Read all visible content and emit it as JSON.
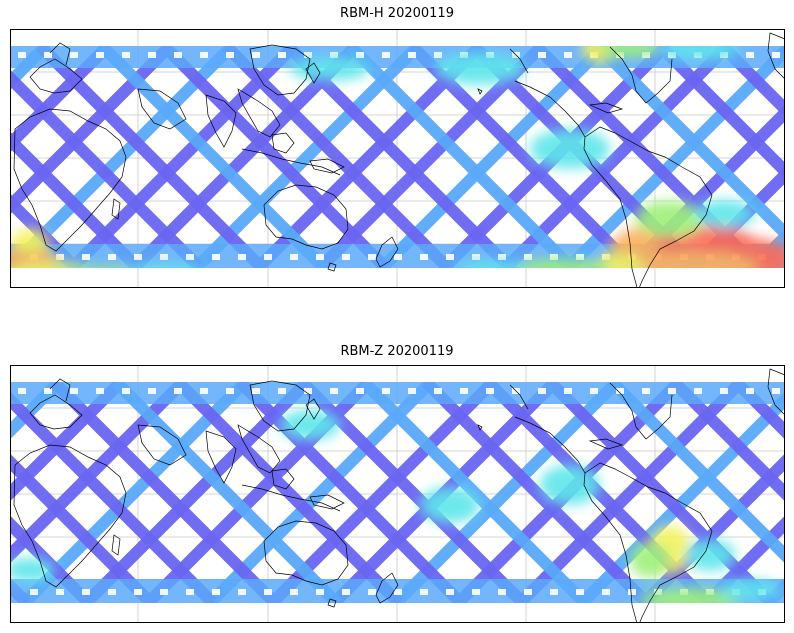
{
  "panels": [
    {
      "title": "RBM-H 20200119",
      "variant": "H"
    },
    {
      "title": "RBM-Z 20200119",
      "variant": "Z"
    }
  ],
  "colors": {
    "track_main": "#6a66f2",
    "track_light": "#5aa9fa",
    "track_cyan": "#5ee6ea",
    "green": "#9ef07a",
    "yellow": "#f4f25a",
    "orange": "#fdae5a",
    "red": "#fd6a55",
    "coast": "#000000",
    "grid": "#c8c8c8"
  }
}
